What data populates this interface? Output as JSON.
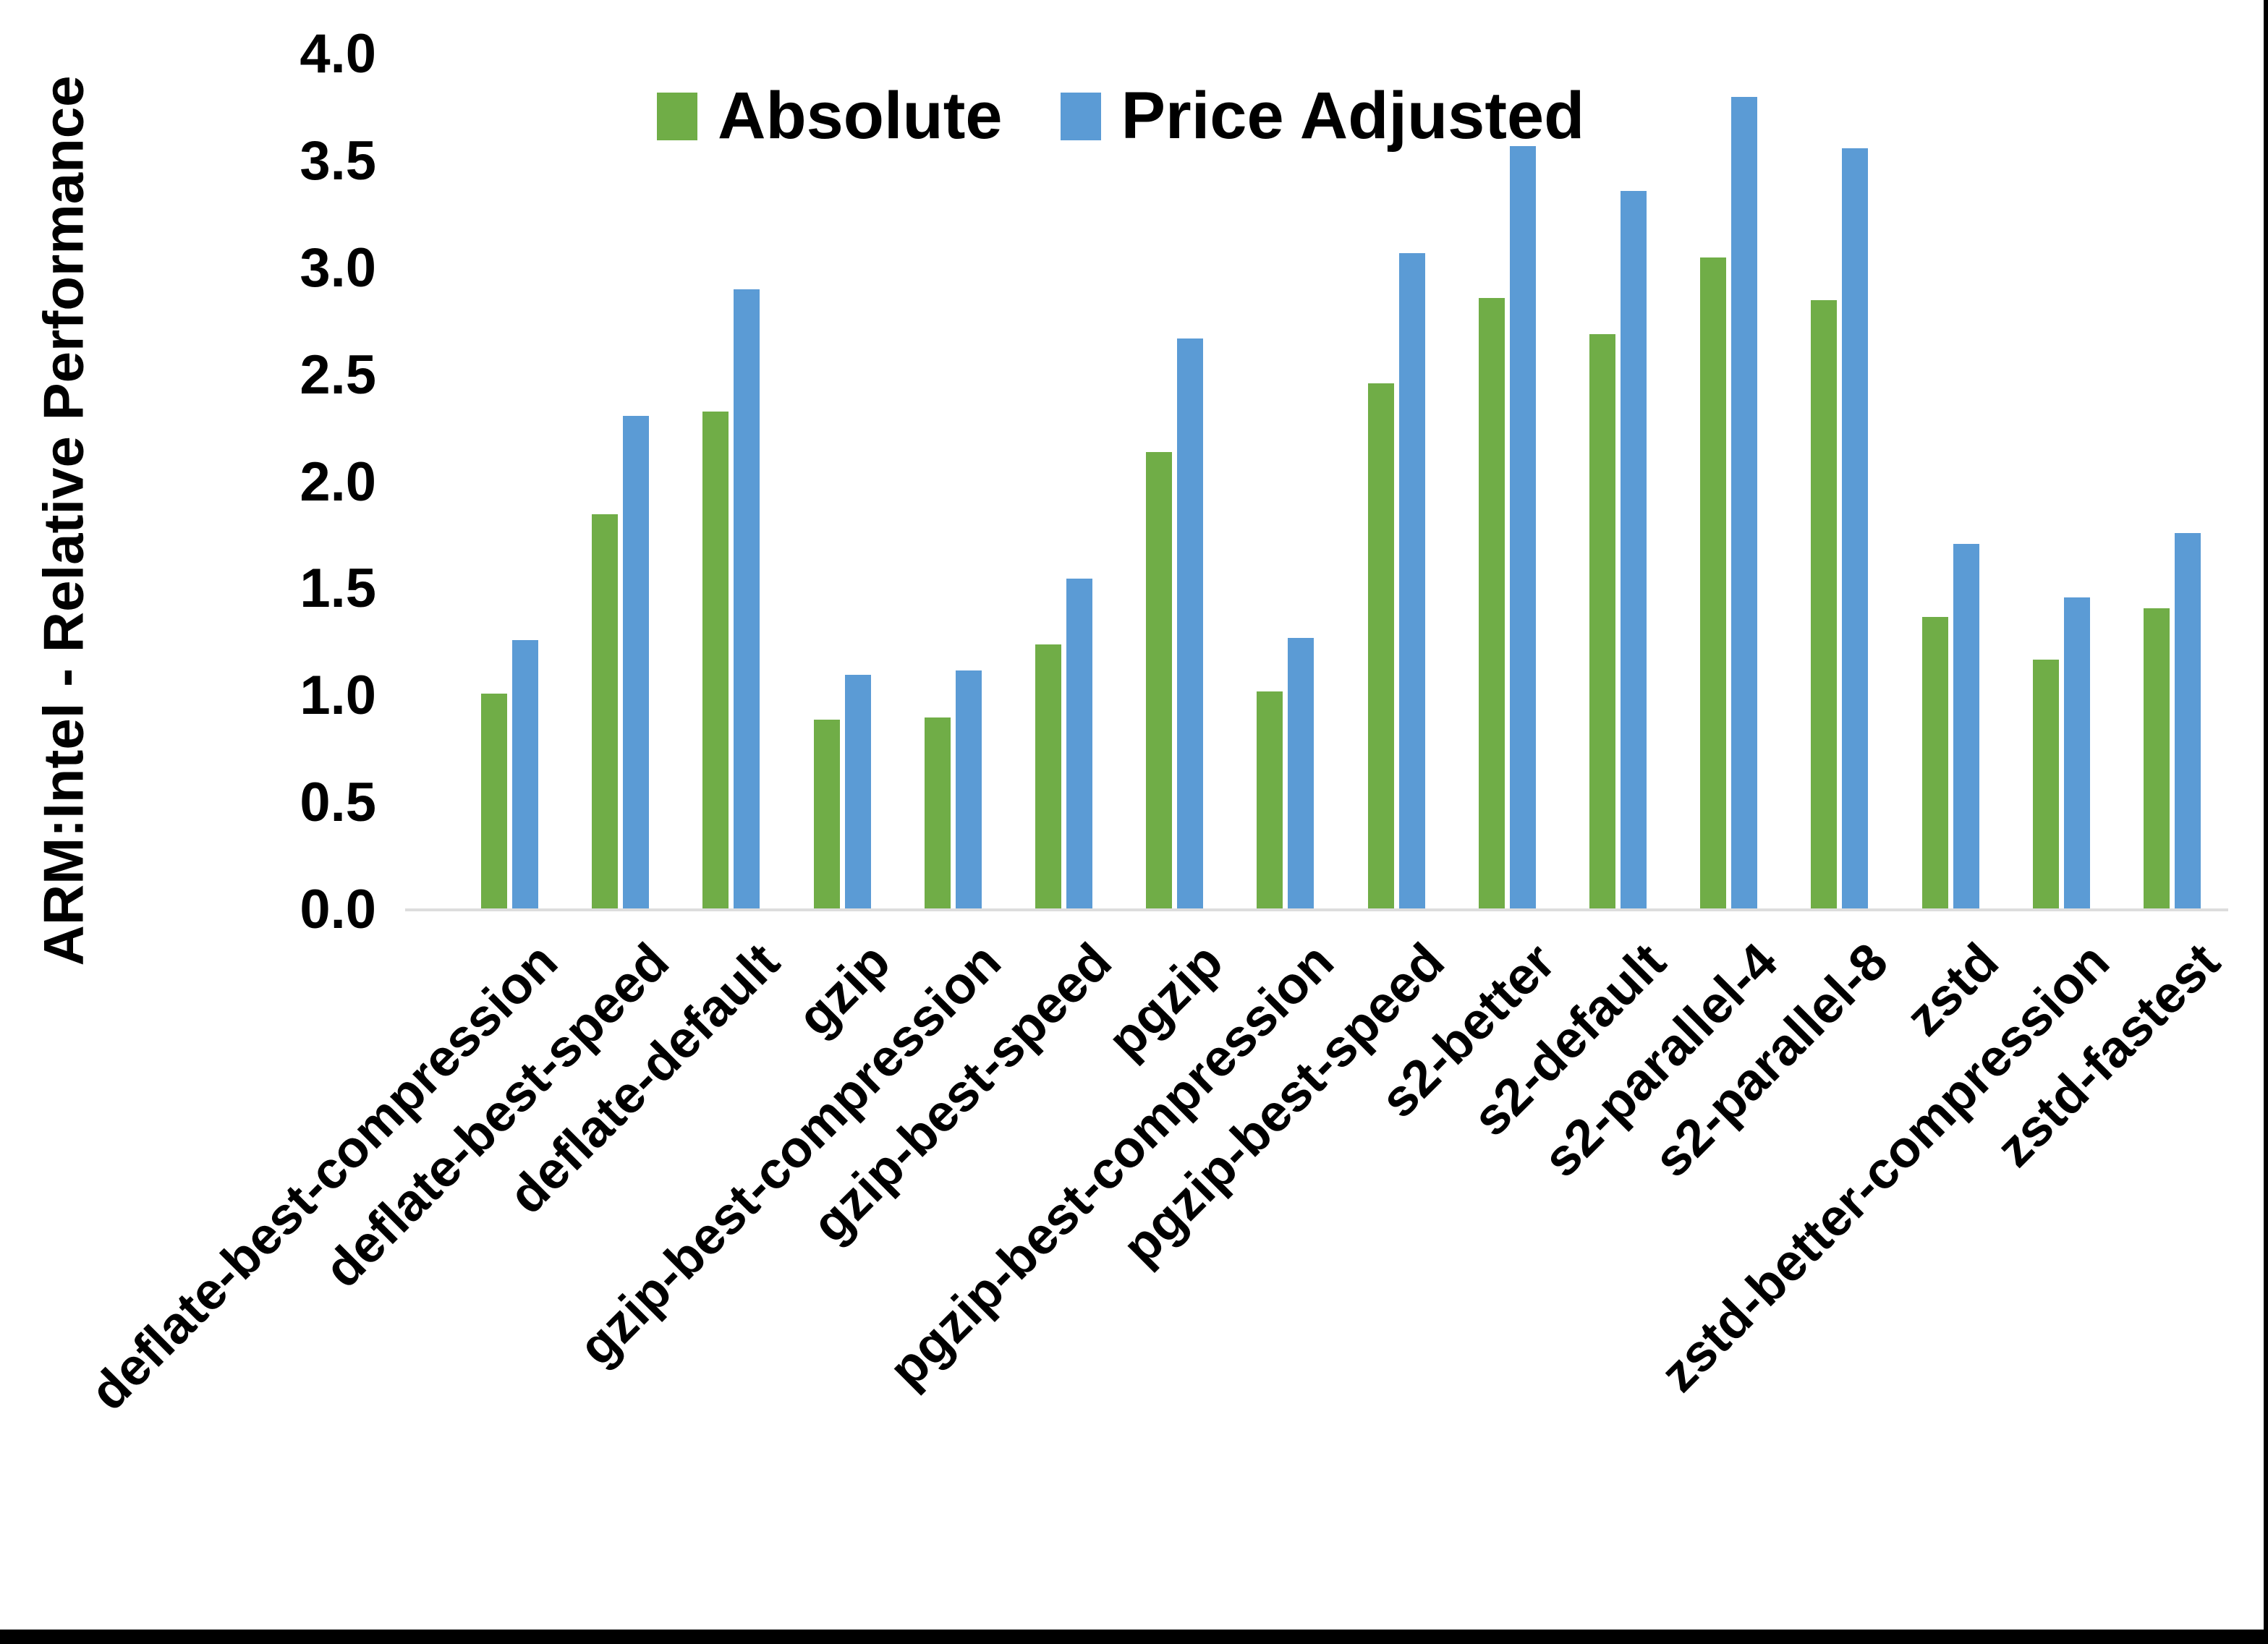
{
  "chart_data": {
    "type": "bar",
    "title": "",
    "ylabel": "ARM:Intel - Relative Performance",
    "xlabel": "",
    "ylim": [
      0.0,
      4.0
    ],
    "ytick_step": 0.5,
    "ytick_format_decimals": 1,
    "grid": "off",
    "legend_position": "top",
    "categories": [
      "deflate-best-compression",
      "deflate-best-speed",
      "deflate-default",
      "gzip",
      "gzip-best-compression",
      "gzip-best-speed",
      "pgzip",
      "pgzip-best-compression",
      "pgzip-best-speed",
      "s2-better",
      "s2-default",
      "s2-parallel-4",
      "s2-parallel-8",
      "zstd",
      "zstd-better-compression",
      "zstd-fastest"
    ],
    "series": [
      {
        "name": "Absolute",
        "color": "#70AD47",
        "values": [
          1.01,
          1.85,
          2.33,
          0.89,
          0.9,
          1.24,
          2.14,
          1.02,
          2.46,
          2.86,
          2.69,
          3.05,
          2.85,
          1.37,
          1.17,
          1.41
        ]
      },
      {
        "name": "Price Adjusted",
        "color": "#5B9BD5",
        "values": [
          1.26,
          2.31,
          2.9,
          1.1,
          1.12,
          1.55,
          2.67,
          1.27,
          3.07,
          3.57,
          3.36,
          3.8,
          3.56,
          1.71,
          1.46,
          1.76
        ]
      }
    ],
    "axis_line_color": "#DDDDDD",
    "text_color": "#000000"
  }
}
